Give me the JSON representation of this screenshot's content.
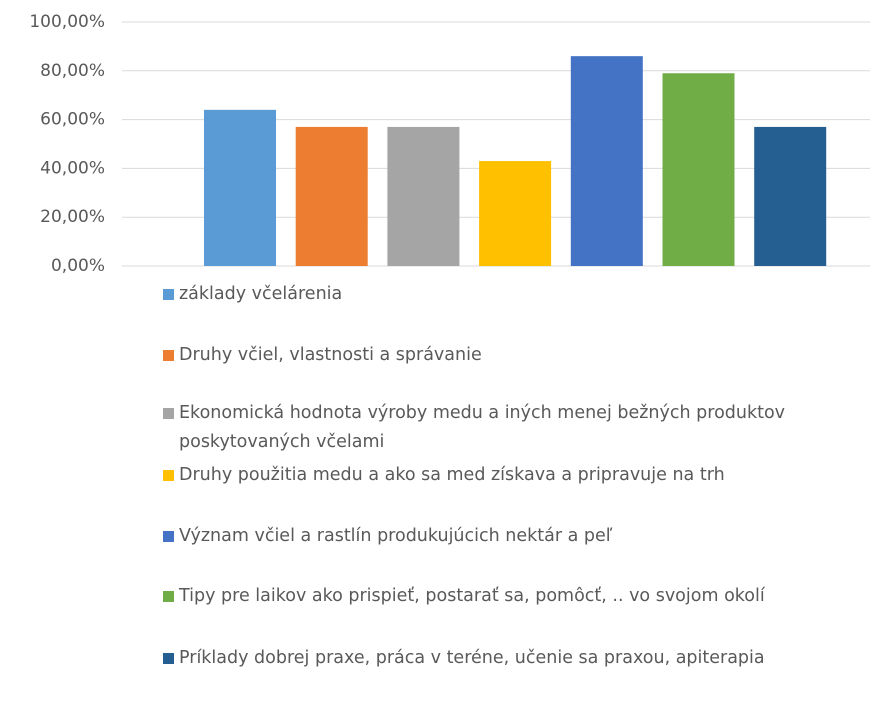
{
  "chart_data": {
    "type": "bar",
    "series": [
      {
        "name": "základy včelárenia",
        "color": "#5b9bd5",
        "values": [
          64
        ]
      },
      {
        "name": "Druhy včiel, vlastnosti a správanie",
        "color": "#ed7d31",
        "values": [
          57
        ]
      },
      {
        "name": "Ekonomická hodnota výroby medu a iných menej bežných produktov poskytovaných včelami",
        "color": "#a5a5a5",
        "values": [
          57
        ]
      },
      {
        "name": "Druhy použitia medu a ako sa med získava a pripravuje na trh",
        "color": "#ffc000",
        "values": [
          43
        ]
      },
      {
        "name": "Význam včiel a rastlín produkujúcich nektár a peľ",
        "color": "#4472c4",
        "values": [
          86
        ]
      },
      {
        "name": "Tipy pre laikov ako prispieť, postarať sa, pomôcť, .. vo svojom okolí",
        "color": "#70ad47",
        "values": [
          79
        ]
      },
      {
        "name": "Príklady dobrej praxe, práca v teréne, učenie sa praxou, apiterapia",
        "color": "#255e91",
        "values": [
          57
        ]
      }
    ],
    "ylim": [
      0,
      100
    ],
    "yticks": [
      {
        "value": 0,
        "label": "0,00%"
      },
      {
        "value": 20,
        "label": "20,00%"
      },
      {
        "value": 40,
        "label": "40,00%"
      },
      {
        "value": 60,
        "label": "60,00%"
      },
      {
        "value": 80,
        "label": "80,00%"
      },
      {
        "value": 100,
        "label": "100,00%"
      }
    ],
    "grid": true,
    "legend": "bottom"
  }
}
